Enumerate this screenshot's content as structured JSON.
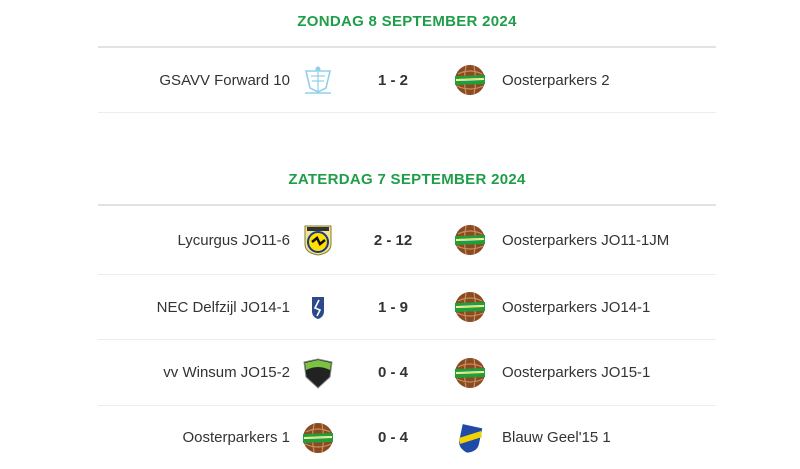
{
  "sections": [
    {
      "date": "ZONDAG 8 SEPTEMBER 2024",
      "matches": [
        {
          "home": "GSAVV Forward 10",
          "home_logo": "gsavv",
          "score": "1 - 2",
          "away": "Oosterparkers 2",
          "away_logo": "oosterparkers"
        }
      ]
    },
    {
      "date": "ZATERDAG 7 SEPTEMBER 2024",
      "matches": [
        {
          "home": "Lycurgus JO11-6",
          "home_logo": "lycurgus",
          "score": "2 - 12",
          "away": "Oosterparkers JO11-1JM",
          "away_logo": "oosterparkers"
        },
        {
          "home": "NEC Delfzijl JO14-1",
          "home_logo": "nec",
          "score": "1 - 9",
          "away": "Oosterparkers JO14-1",
          "away_logo": "oosterparkers"
        },
        {
          "home": "vv Winsum JO15-2",
          "home_logo": "winsum",
          "score": "0 - 4",
          "away": "Oosterparkers JO15-1",
          "away_logo": "oosterparkers"
        },
        {
          "home": "Oosterparkers 1",
          "home_logo": "oosterparkers",
          "score": "0 - 4",
          "away": "Blauw Geel'15 1",
          "away_logo": "blauwgeel"
        }
      ]
    }
  ],
  "colors": {
    "accent": "#1f9e4a",
    "text": "#333333",
    "divider": "#e2e2e2"
  }
}
